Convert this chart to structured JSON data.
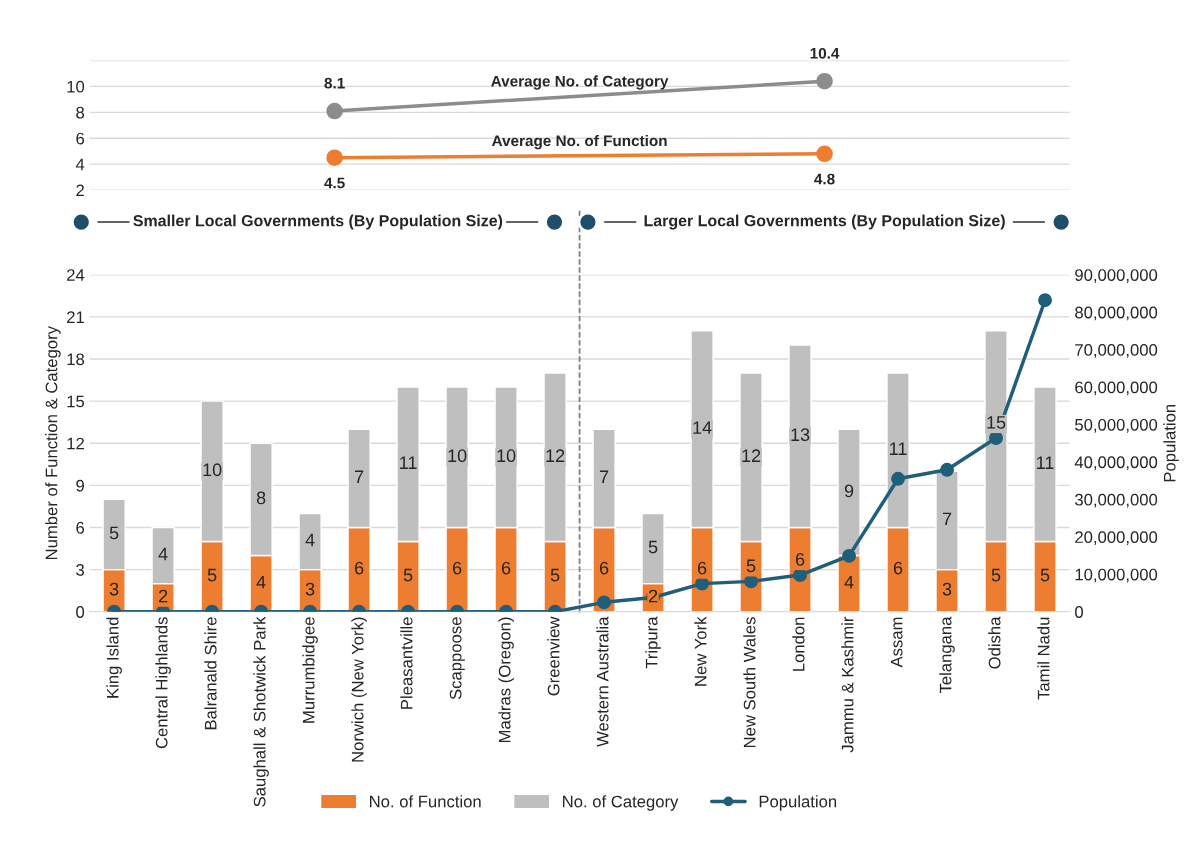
{
  "chart_data": [
    {
      "type": "line",
      "categories": [
        null,
        null
      ],
      "series": [
        {
          "name": "Average No. of Category",
          "color": "#8c8c8c",
          "values": [
            8.1,
            10.4
          ]
        },
        {
          "name": "Average No. of Function",
          "color": "#ed7d31",
          "values": [
            4.5,
            4.8
          ]
        }
      ],
      "ylim": [
        2,
        12
      ],
      "yticks": [
        2,
        4,
        6,
        8,
        10,
        {
          "value": 12,
          "label": null
        }
      ],
      "grid": "y",
      "marker": "circle",
      "data_labels": true,
      "tick_labels": "y",
      "annotations": [
        "Smaller Local Governments (By Population Size)",
        "Larger Local Governments (By Population Size)"
      ]
    },
    {
      "type": "bar",
      "stacked": true,
      "categories": [
        "King Island",
        "Central Highlands",
        "Balranald Shire",
        "Saughall & Shotwick Park",
        "Murrumbidgee",
        "Norwich (New York)",
        "Pleasantville",
        "Scappoose",
        "Madras (Oregon)",
        "Greenview",
        "Western Australia",
        "Tripura",
        "New York",
        "New South Wales",
        "London",
        "Jammu & Kashmir",
        "Assam",
        "Telangana",
        "Odisha",
        "Tamil Nadu"
      ],
      "series": [
        {
          "name": "No. of Function",
          "color": "#ed7d31",
          "values": [
            3,
            2,
            5,
            4,
            3,
            6,
            5,
            6,
            6,
            5,
            6,
            2,
            6,
            5,
            6,
            4,
            6,
            3,
            5,
            5
          ],
          "value_labels": [
            "3",
            "2",
            "5",
            "4",
            "3",
            "6",
            "5",
            "6",
            "6",
            "5",
            "6",
            "2",
            "6",
            "5",
            "6",
            "4",
            "6",
            "3",
            "5",
            "5"
          ]
        },
        {
          "name": "No. of Category",
          "color": "#bfbfbf",
          "values": [
            5,
            4,
            10,
            8,
            4,
            7,
            11,
            10,
            10,
            12,
            7,
            5,
            14,
            12,
            13,
            9,
            11,
            7,
            15,
            11
          ],
          "value_labels": [
            "5",
            "4",
            "10",
            "8",
            "4",
            "7",
            "11",
            "10",
            "10",
            "12",
            "7",
            "5",
            "14",
            "12",
            "13",
            "9",
            "11",
            "7",
            "15",
            "11"
          ]
        },
        {
          "name": "Population",
          "type": "line",
          "axis": "y2",
          "color": "#1f5f7a",
          "marker": "circle",
          "values": [
            0,
            0,
            0,
            0,
            0,
            0,
            0,
            0,
            0,
            0,
            2500000,
            3800000,
            7500000,
            8100000,
            9800000,
            14900000,
            35500000,
            37900000,
            46400000,
            83200000
          ]
        }
      ],
      "ylabel": "Number of Function & Category",
      "y2label": "Population",
      "ylim": [
        0,
        24
      ],
      "yticks": [
        0,
        3,
        6,
        9,
        12,
        15,
        18,
        21,
        24
      ],
      "y2lim": [
        0,
        90000000
      ],
      "y2ticks": [
        {
          "value": 0,
          "label": "0"
        },
        {
          "value": 10000000,
          "label": "10,000,000"
        },
        {
          "value": 20000000,
          "label": "20,000,000"
        },
        {
          "value": 30000000,
          "label": "30,000,000"
        },
        {
          "value": 40000000,
          "label": "40,000,000"
        },
        {
          "value": 50000000,
          "label": "50,000,000"
        },
        {
          "value": 60000000,
          "label": "60,000,000"
        },
        {
          "value": 70000000,
          "label": "70,000,000"
        },
        {
          "value": 80000000,
          "label": "80,000,000"
        },
        {
          "value": 90000000,
          "label": "90,000,000"
        }
      ],
      "grid": "y",
      "legend": "bottom"
    }
  ]
}
